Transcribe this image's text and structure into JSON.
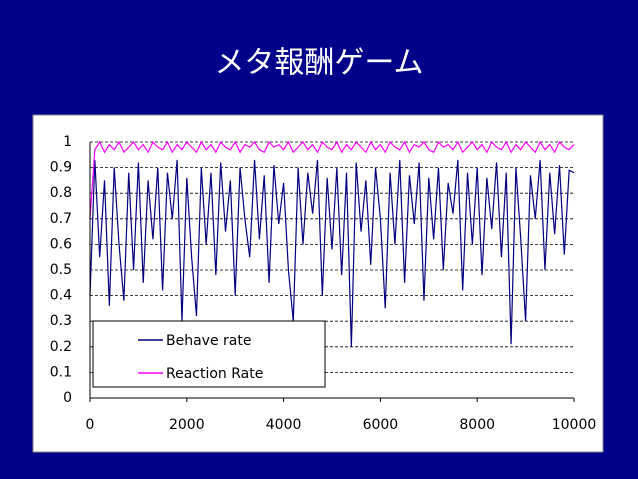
{
  "chart_data": {
    "type": "line",
    "title": "メタ報酬ゲーム",
    "x": [
      0,
      100,
      200,
      300,
      400,
      500,
      600,
      700,
      800,
      900,
      1000,
      1100,
      1200,
      1300,
      1400,
      1500,
      1600,
      1700,
      1800,
      1900,
      2000,
      2100,
      2200,
      2300,
      2400,
      2500,
      2600,
      2700,
      2800,
      2900,
      3000,
      3100,
      3200,
      3300,
      3400,
      3500,
      3600,
      3700,
      3800,
      3900,
      4000,
      4100,
      4200,
      4300,
      4400,
      4500,
      4600,
      4700,
      4800,
      4900,
      5000,
      5100,
      5200,
      5300,
      5400,
      5500,
      5600,
      5700,
      5800,
      5900,
      6000,
      6100,
      6200,
      6300,
      6400,
      6500,
      6600,
      6700,
      6800,
      6900,
      7000,
      7100,
      7200,
      7300,
      7400,
      7500,
      7600,
      7700,
      7800,
      7900,
      8000,
      8100,
      8200,
      8300,
      8400,
      8500,
      8600,
      8700,
      8800,
      8900,
      9000,
      9100,
      9200,
      9300,
      9400,
      9500,
      9600,
      9700,
      9800,
      9900,
      10000
    ],
    "series": [
      {
        "name": "Behave rate",
        "color": "#000080",
        "values": [
          0.4,
          0.93,
          0.55,
          0.85,
          0.36,
          0.9,
          0.6,
          0.38,
          0.88,
          0.5,
          0.92,
          0.45,
          0.85,
          0.62,
          0.9,
          0.42,
          0.88,
          0.7,
          0.93,
          0.3,
          0.86,
          0.55,
          0.32,
          0.9,
          0.6,
          0.88,
          0.48,
          0.92,
          0.65,
          0.85,
          0.4,
          0.9,
          0.7,
          0.55,
          0.93,
          0.62,
          0.87,
          0.45,
          0.91,
          0.68,
          0.84,
          0.5,
          0.3,
          0.9,
          0.6,
          0.88,
          0.72,
          0.93,
          0.4,
          0.86,
          0.58,
          0.9,
          0.48,
          0.88,
          0.2,
          0.92,
          0.65,
          0.85,
          0.52,
          0.9,
          0.7,
          0.35,
          0.88,
          0.6,
          0.93,
          0.45,
          0.87,
          0.68,
          0.92,
          0.38,
          0.86,
          0.62,
          0.9,
          0.5,
          0.84,
          0.72,
          0.93,
          0.42,
          0.88,
          0.6,
          0.9,
          0.48,
          0.86,
          0.66,
          0.92,
          0.55,
          0.88,
          0.21,
          0.9,
          0.62,
          0.3,
          0.87,
          0.7,
          0.93,
          0.5,
          0.88,
          0.64,
          0.91,
          0.56,
          0.89,
          0.88
        ]
      },
      {
        "name": "Reaction Rate",
        "color": "#ff00ff",
        "values": [
          0.7,
          0.97,
          1,
          0.96,
          0.99,
          0.97,
          1,
          0.96,
          0.98,
          1,
          0.97,
          0.99,
          0.96,
          1,
          0.98,
          0.97,
          1,
          0.96,
          0.99,
          0.97,
          1,
          0.98,
          0.96,
          1,
          0.97,
          0.99,
          0.96,
          1,
          0.98,
          0.97,
          1,
          0.96,
          0.99,
          0.98,
          1,
          0.97,
          0.96,
          1,
          0.98,
          0.99,
          0.97,
          1,
          0.96,
          0.98,
          1,
          0.97,
          0.99,
          0.96,
          1,
          0.98,
          0.97,
          1,
          0.96,
          0.99,
          0.97,
          1,
          0.98,
          0.96,
          1,
          0.97,
          0.99,
          0.96,
          1,
          0.98,
          0.97,
          1,
          0.96,
          0.99,
          0.98,
          1,
          0.97,
          0.96,
          1,
          0.98,
          0.99,
          0.97,
          1,
          0.96,
          0.98,
          1,
          0.97,
          0.99,
          0.96,
          1,
          0.98,
          0.97,
          1,
          0.96,
          0.99,
          0.97,
          1,
          0.98,
          0.96,
          1,
          0.97,
          0.99,
          0.96,
          1,
          0.98,
          0.97,
          0.99
        ]
      }
    ],
    "xlim": [
      0,
      10000
    ],
    "xticks": [
      0,
      2000,
      4000,
      6000,
      8000,
      10000
    ],
    "ylim": [
      0,
      1
    ],
    "yticks": [
      0,
      0.1,
      0.2,
      0.3,
      0.4,
      0.5,
      0.6,
      0.7,
      0.8,
      0.9,
      1
    ],
    "grid": true,
    "legend": "lower left"
  }
}
